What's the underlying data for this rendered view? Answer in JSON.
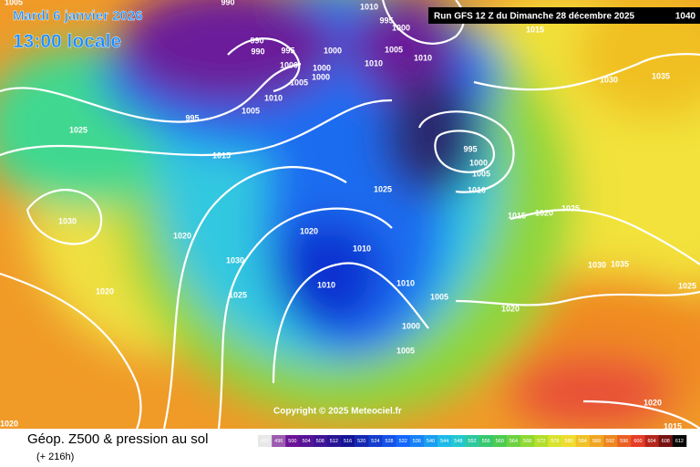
{
  "header": {
    "date": "Mardi 6 janvier 2026",
    "time": "13:00 locale",
    "run": "Run GFS 12 Z du Dimanche 28 décembre 2025",
    "corner_isobar": "1040"
  },
  "isobars": [
    990,
    990,
    990,
    995,
    1000,
    1000,
    1000,
    1000,
    1005,
    1010,
    1005,
    995,
    1025,
    1015,
    1010,
    995,
    1000,
    1005,
    1010,
    1010,
    995,
    1000,
    1005,
    1010,
    1025,
    1015,
    1020,
    1025,
    1030,
    1020,
    1020,
    1010,
    1030,
    1025,
    1020,
    1010,
    1010,
    1005,
    1000,
    1005,
    1020,
    1030,
    1035,
    1030,
    1035,
    1025,
    1020,
    1015,
    1020,
    1005,
    1015
  ],
  "copyright": "Copyright © 2025 Meteociel.fr",
  "footer": {
    "title": "Géop. Z500 & pression au sol",
    "lead": "(+ 216h)"
  },
  "scale": {
    "values": [
      492,
      496,
      500,
      504,
      508,
      512,
      516,
      520,
      524,
      528,
      532,
      536,
      540,
      544,
      548,
      552,
      556,
      560,
      564,
      568,
      572,
      576,
      580,
      584,
      588,
      592,
      596,
      600,
      604,
      608,
      612
    ]
  }
}
